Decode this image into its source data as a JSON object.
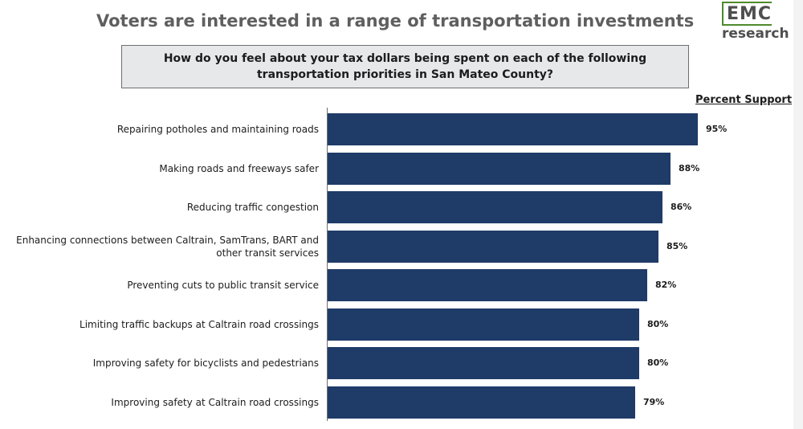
{
  "slide": {
    "title": "Voters are interested in a range of transportation investments"
  },
  "logo": {
    "line1": "EMC",
    "line2": "research"
  },
  "question": "How do you feel about your tax dollars being spent on each of the following transportation priorities in San Mateo County?",
  "chart_data": {
    "type": "bar",
    "orientation": "horizontal",
    "value_header": "Percent Support",
    "categories": [
      "Repairing potholes and maintaining roads",
      "Making roads and freeways safer",
      "Reducing traffic congestion",
      "Enhancing connections between Caltrain, SamTrans, BART and other transit services",
      "Preventing cuts to public transit service",
      "Limiting traffic backups at Caltrain road crossings",
      "Improving safety for bicyclists and pedestrians",
      "Improving safety at Caltrain road crossings"
    ],
    "values": [
      95,
      88,
      86,
      85,
      82,
      80,
      80,
      79
    ],
    "value_labels": [
      "95%",
      "88%",
      "86%",
      "85%",
      "82%",
      "80%",
      "80%",
      "79%"
    ],
    "bar_color": "#1f3b68"
  }
}
